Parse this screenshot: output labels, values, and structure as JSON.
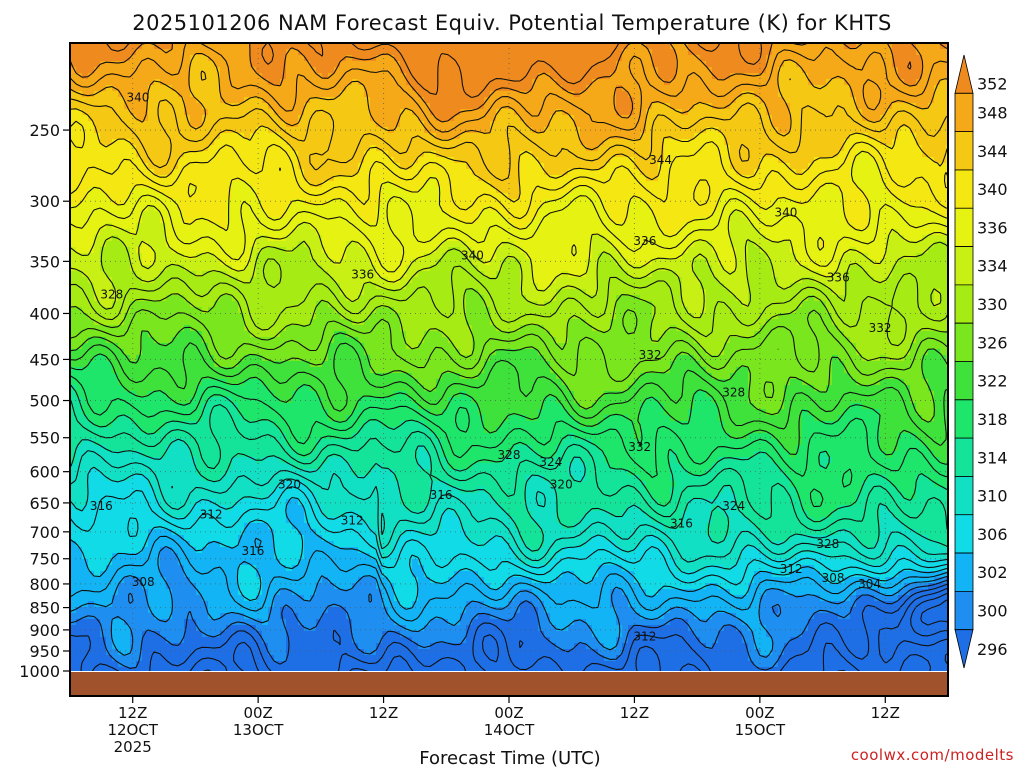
{
  "chart_data": {
    "type": "heatmap",
    "title": "2025101206 NAM Forecast Equiv. Potential Temperature (K) for KHTS",
    "xlabel": "Forecast Time (UTC)",
    "ylabel": "",
    "yaxis": {
      "scale": "pressure",
      "ticks": [
        250,
        300,
        350,
        400,
        450,
        500,
        550,
        600,
        650,
        700,
        750,
        800,
        850,
        900,
        950,
        1000
      ],
      "tick_labels": [
        "250",
        "300",
        "350",
        "400",
        "450",
        "500",
        "550",
        "600",
        "650",
        "700",
        "750",
        "800",
        "850",
        "900",
        "950",
        "1000"
      ],
      "range": [
        200,
        1000
      ]
    },
    "xaxis": {
      "ticks_hours": [
        12,
        24,
        36,
        48,
        60,
        72,
        84
      ],
      "tick_labels": [
        [
          "12Z",
          "12OCT",
          "2025"
        ],
        [
          "00Z",
          "13OCT"
        ],
        [
          "12Z"
        ],
        [
          "00Z",
          "14OCT"
        ],
        [
          "12Z"
        ],
        [
          "00Z",
          "15OCT"
        ],
        [
          "12Z"
        ]
      ],
      "range_hours": [
        6,
        90
      ]
    },
    "colorbar": {
      "levels": [
        296,
        300,
        302,
        306,
        310,
        314,
        318,
        322,
        326,
        330,
        334,
        336,
        340,
        344,
        348,
        352
      ],
      "labels": [
        "352",
        "348",
        "344",
        "340",
        "336",
        "334",
        "330",
        "326",
        "322",
        "318",
        "314",
        "310",
        "306",
        "302",
        "300",
        "296"
      ],
      "colors": [
        "#1e6fe6",
        "#1e8ff0",
        "#12b4f5",
        "#12dbe8",
        "#12e0c4",
        "#14e49a",
        "#1ee66a",
        "#3ee23a",
        "#7ae61e",
        "#a6ec14",
        "#c8f014",
        "#e6f212",
        "#f5e712",
        "#f5c814",
        "#f5a818",
        "#ef8a1e"
      ]
    },
    "contour_labels": [
      {
        "value": "340",
        "t": 12.5,
        "p": 230
      },
      {
        "value": "344",
        "t": 62.5,
        "p": 270
      },
      {
        "value": "340",
        "t": 74.5,
        "p": 309
      },
      {
        "value": "336",
        "t": 61.0,
        "p": 332
      },
      {
        "value": "340",
        "t": 44.5,
        "p": 345
      },
      {
        "value": "336",
        "t": 34.0,
        "p": 362
      },
      {
        "value": "336",
        "t": 79.5,
        "p": 365
      },
      {
        "value": "328",
        "t": 10.0,
        "p": 381
      },
      {
        "value": "332",
        "t": 83.5,
        "p": 415
      },
      {
        "value": "332",
        "t": 61.5,
        "p": 445
      },
      {
        "value": "328",
        "t": 69.5,
        "p": 490
      },
      {
        "value": "332",
        "t": 60.5,
        "p": 563
      },
      {
        "value": "328",
        "t": 48.0,
        "p": 575
      },
      {
        "value": "324",
        "t": 52.0,
        "p": 585
      },
      {
        "value": "320",
        "t": 27.0,
        "p": 620
      },
      {
        "value": "320",
        "t": 53.0,
        "p": 620
      },
      {
        "value": "316",
        "t": 41.5,
        "p": 637
      },
      {
        "value": "316",
        "t": 9.0,
        "p": 655
      },
      {
        "value": "324",
        "t": 69.5,
        "p": 655
      },
      {
        "value": "312",
        "t": 19.5,
        "p": 670
      },
      {
        "value": "312",
        "t": 33.0,
        "p": 680
      },
      {
        "value": "316",
        "t": 64.5,
        "p": 685
      },
      {
        "value": "328",
        "t": 78.5,
        "p": 722
      },
      {
        "value": "316",
        "t": 23.5,
        "p": 735
      },
      {
        "value": "312",
        "t": 75.0,
        "p": 770
      },
      {
        "value": "308",
        "t": 79.0,
        "p": 788
      },
      {
        "value": "304",
        "t": 82.5,
        "p": 800
      },
      {
        "value": "308",
        "t": 13.0,
        "p": 796
      },
      {
        "value": "312",
        "t": 61.0,
        "p": 915
      }
    ]
  },
  "credit": "coolwx.com/modelts"
}
